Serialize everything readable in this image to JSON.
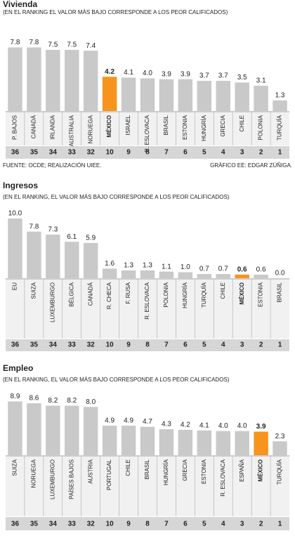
{
  "chart_data": [
    {
      "type": "bar",
      "title": "Vivienda",
      "subtitle": "(EN EL RANKING EL VALOR MÁS BAJO CORRESPONDE A LOS PEOR CALIFICADOS)",
      "categories": [
        "P. BAJOS",
        "CANADÁ",
        "IRLANDA",
        "AUSTRALIA",
        "NORUEGA",
        "MÉXICO",
        "ISRAEL",
        "R. ESLOVACA",
        "BRASIL",
        "ESTONIA",
        "HUNGRÍA",
        "GRECIA",
        "CHILE",
        "POLONIA",
        "TURQUÍA"
      ],
      "values": [
        7.8,
        7.8,
        7.5,
        7.5,
        7.4,
        4.2,
        4.1,
        4.0,
        3.9,
        3.9,
        3.7,
        3.7,
        3.5,
        3.1,
        1.3
      ],
      "value_labels": [
        "7.8",
        "7.8",
        "7.5",
        "7.5",
        "7.4",
        "4.2",
        "4.1",
        "4.0",
        "3.9",
        "3.9",
        "3.7",
        "3.7",
        "3.5",
        "3.1",
        "1.3"
      ],
      "ranks": [
        36,
        35,
        34,
        33,
        32,
        10,
        9,
        8,
        7,
        6,
        5,
        4,
        3,
        2,
        1
      ],
      "ylim": [
        0,
        10
      ],
      "color": "#c9c9c9",
      "highlight": 5,
      "highlight_color": "#f7941d",
      "source": "FUENTE: OCDE; REALIZACIÓN UIEE.",
      "credit": "GRÁFICO EE: EDGAR ZÚÑIGA."
    },
    {
      "type": "bar",
      "title": "Ingresos",
      "subtitle": "(EN EL RANKING, EL VALOR MÁS BAJO CORRESPONDE A LOS PEOR CALIFICADOS)",
      "categories": [
        "EU",
        "SUIZA",
        "LUXEMBURGO",
        "BÉLGICA",
        "CANADÁ",
        "R. CHECA",
        "F. RUSA",
        "R. ESLOVACA",
        "POLONIA",
        "HUNGRÍA",
        "TURQUÍA",
        "CHILE",
        "MÉXICO",
        "ESTONIA",
        "BRASIL"
      ],
      "values": [
        10.0,
        7.8,
        7.3,
        6.1,
        5.9,
        1.6,
        1.3,
        1.3,
        1.1,
        1.0,
        0.7,
        0.7,
        0.6,
        0.6,
        0.0
      ],
      "value_labels": [
        "10.0",
        "7.8",
        "7.3",
        "6.1",
        "5.9",
        "1.6",
        "1.3",
        "1.3",
        "1.1",
        "1.0",
        "0.7",
        "0.7",
        "0.6",
        "0.6",
        "0.0"
      ],
      "ranks": [
        36,
        35,
        34,
        33,
        32,
        10,
        9,
        8,
        7,
        6,
        5,
        4,
        3,
        2,
        1
      ],
      "ylim": [
        0,
        10
      ],
      "color": "#c9c9c9",
      "highlight": 12,
      "highlight_color": "#f7941d"
    },
    {
      "type": "bar",
      "title": "Empleo",
      "subtitle": "(EN EL RANKING, EL VALOR MÁS BAJO CORRESPONDE A LOS PEOR CALIFICADOS)",
      "categories": [
        "SUIZA",
        "NORUEGA",
        "LUXEMBURGO",
        "PAÍSES BAJOS",
        "AUSTRIA",
        "PORTUGAL",
        "CHILE",
        "BRASIL",
        "HUNGRÍA",
        "GRECIA",
        "ESTONIA",
        "R. ESLOVACA",
        "ESPAÑA",
        "MÉXICO",
        "TURQUÍA"
      ],
      "values": [
        8.9,
        8.6,
        8.2,
        8.2,
        8.0,
        4.9,
        4.9,
        4.7,
        4.3,
        4.2,
        4.1,
        4.0,
        4.0,
        3.9,
        2.3
      ],
      "value_labels": [
        "8.9",
        "8.6",
        "8.2",
        "8.2",
        "8.0",
        "4.9",
        "4.9",
        "4.7",
        "4.3",
        "4.2",
        "4.1",
        "4.0",
        "4.0",
        "3.9",
        "2.3"
      ],
      "ranks": [
        36,
        35,
        34,
        33,
        32,
        10,
        9,
        8,
        7,
        6,
        5,
        4,
        3,
        2,
        1
      ],
      "ylim": [
        0,
        10
      ],
      "color": "#c9c9c9",
      "highlight": 13,
      "highlight_color": "#f7941d"
    }
  ]
}
